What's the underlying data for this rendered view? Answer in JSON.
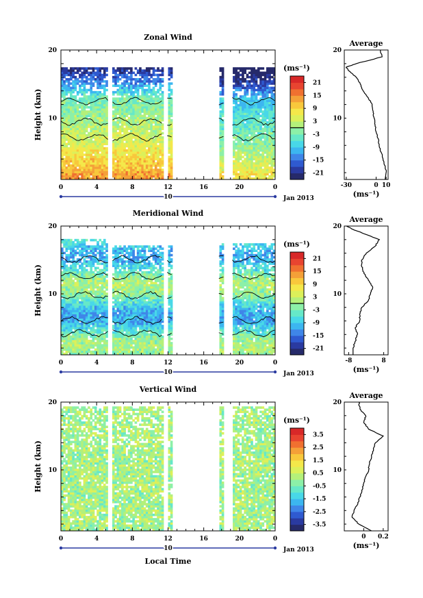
{
  "figure": {
    "xlabel": "Local Time",
    "date_label": "Jan 2013",
    "day_label": "10",
    "x_ticks": [
      "0",
      "4",
      "8",
      "12",
      "16",
      "20",
      "0"
    ]
  },
  "chart_data": [
    {
      "type": "heatmap",
      "title": "Zonal Wind",
      "ylabel": "Height (km)",
      "xlabel": "Local Time",
      "xlim": [
        0,
        24
      ],
      "ylim": [
        1,
        20
      ],
      "y_ticks": [
        10,
        20
      ],
      "data_gaps_hours": [
        [
          5.3,
          5.8
        ],
        [
          11.5,
          11.9
        ],
        [
          12.6,
          17.7
        ],
        [
          18.2,
          19.2
        ]
      ],
      "colorbar": {
        "unit": "(ms⁻¹)",
        "ticks": [
          21,
          15,
          9,
          3,
          -3,
          -9,
          -15,
          -21
        ],
        "range": [
          -24,
          24
        ]
      },
      "profile": {
        "title": "Average",
        "xlabel": "(ms⁻¹)",
        "x_ticks": [
          -30,
          0,
          10
        ],
        "xlim": [
          -32,
          12
        ],
        "heights": [
          1,
          2,
          3,
          4,
          5,
          6,
          7,
          8,
          9,
          10,
          11,
          12,
          13,
          14,
          15,
          16,
          17,
          17.5,
          18,
          19,
          20
        ],
        "values": [
          9,
          10,
          9,
          7,
          5,
          3,
          2,
          0,
          -1,
          -2,
          -3,
          -4,
          -8,
          -13,
          -16,
          -20,
          -28,
          -30,
          -20,
          6,
          4
        ]
      },
      "contour_levels": [
        0
      ]
    },
    {
      "type": "heatmap",
      "title": "Meridional Wind",
      "ylabel": "Height (km)",
      "xlabel": "Local Time",
      "xlim": [
        0,
        24
      ],
      "ylim": [
        1,
        20
      ],
      "y_ticks": [
        10,
        20
      ],
      "data_gaps_hours": [
        [
          5.3,
          5.8
        ],
        [
          11.5,
          11.9
        ],
        [
          12.6,
          17.7
        ],
        [
          18.2,
          19.2
        ]
      ],
      "colorbar": {
        "unit": "(ms⁻¹)",
        "ticks": [
          21,
          15,
          9,
          3,
          -3,
          -9,
          -15,
          -21
        ],
        "range": [
          -24,
          24
        ]
      },
      "profile": {
        "title": "Average",
        "xlabel": "(ms⁻¹)",
        "x_ticks": [
          -8,
          8
        ],
        "xlim": [
          -10,
          10
        ],
        "heights": [
          1,
          2,
          3,
          4,
          5,
          6,
          7,
          8,
          9,
          10,
          11,
          12,
          13,
          14,
          15,
          16,
          17,
          18,
          19,
          19.5,
          20
        ],
        "values": [
          -6,
          -6,
          -5,
          -4,
          -5,
          -3,
          -3,
          -2,
          1,
          2,
          3,
          1,
          -1,
          -2,
          -2,
          0,
          4,
          6,
          -2,
          -6,
          -9
        ]
      },
      "contour_levels": [
        0
      ]
    },
    {
      "type": "heatmap",
      "title": "Vertical Wind",
      "ylabel": "Height (km)",
      "xlabel": "Local Time",
      "xlim": [
        0,
        24
      ],
      "ylim": [
        1,
        20
      ],
      "y_ticks": [
        10,
        20
      ],
      "data_gaps_hours": [
        [
          5.3,
          5.8
        ],
        [
          11.5,
          11.9
        ],
        [
          12.6,
          17.7
        ],
        [
          18.2,
          19.2
        ]
      ],
      "colorbar": {
        "unit": "(ms⁻¹)",
        "ticks": [
          3.5,
          2.5,
          1.5,
          0.5,
          -0.5,
          -1.5,
          -2.5,
          -3.5
        ],
        "range": [
          -4,
          4
        ]
      },
      "profile": {
        "title": "Average",
        "xlabel": "(ms⁻¹)",
        "x_ticks": [
          0.0,
          0.2
        ],
        "xlim": [
          -0.2,
          0.25
        ],
        "heights": [
          1,
          2,
          3,
          4,
          5,
          6,
          7,
          8,
          9,
          10,
          11,
          12,
          13,
          14,
          15,
          16,
          17,
          18,
          19,
          20
        ],
        "values": [
          0.08,
          -0.05,
          -0.12,
          -0.1,
          -0.06,
          -0.04,
          -0.02,
          0.0,
          0.02,
          0.05,
          0.06,
          0.08,
          0.1,
          0.12,
          0.2,
          0.05,
          0.0,
          0.02,
          -0.04,
          -0.05
        ]
      },
      "contour_levels": []
    }
  ]
}
